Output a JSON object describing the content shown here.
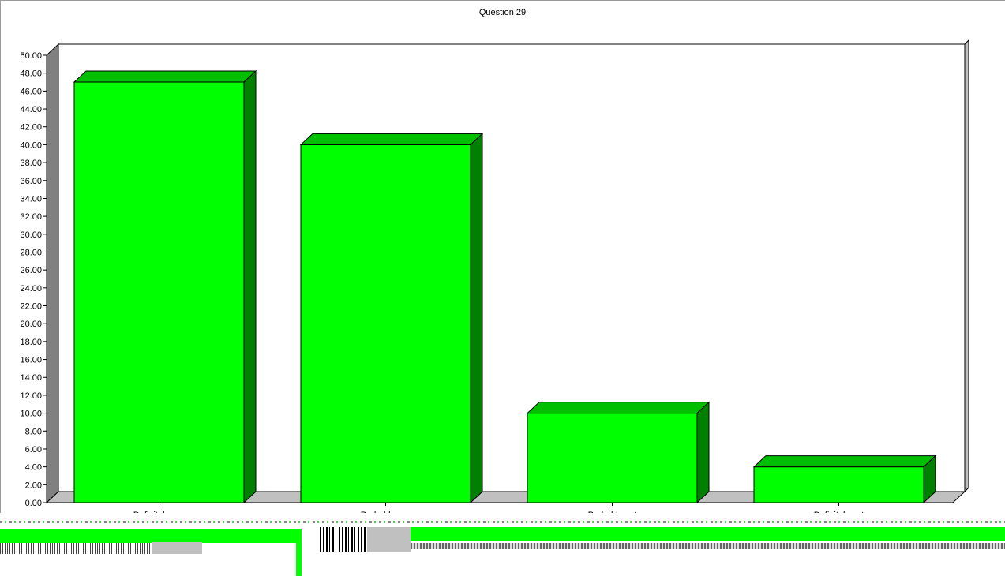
{
  "chart_data": {
    "type": "bar",
    "title": "Question 29",
    "categories": [
      "Definitely yes",
      "Probably yes",
      "Probably not",
      "Definitely not"
    ],
    "values": [
      47.0,
      40.0,
      10.0,
      4.0
    ],
    "ylim": [
      0,
      50
    ],
    "yticks": [
      "0.00",
      "2.00",
      "4.00",
      "6.00",
      "8.00",
      "10.00",
      "12.00",
      "14.00",
      "16.00",
      "18.00",
      "20.00",
      "22.00",
      "24.00",
      "26.00",
      "28.00",
      "30.00",
      "32.00",
      "34.00",
      "36.00",
      "38.00",
      "40.00",
      "42.00",
      "44.00",
      "46.00",
      "48.00",
      "50.00"
    ],
    "grid": false,
    "legend": "none",
    "style": "3d",
    "colors": {
      "bar_front": "#00ff00",
      "bar_top": "#00bf00",
      "bar_side": "#008000",
      "wall": "#808080",
      "floor": "#c0c0c0"
    }
  }
}
